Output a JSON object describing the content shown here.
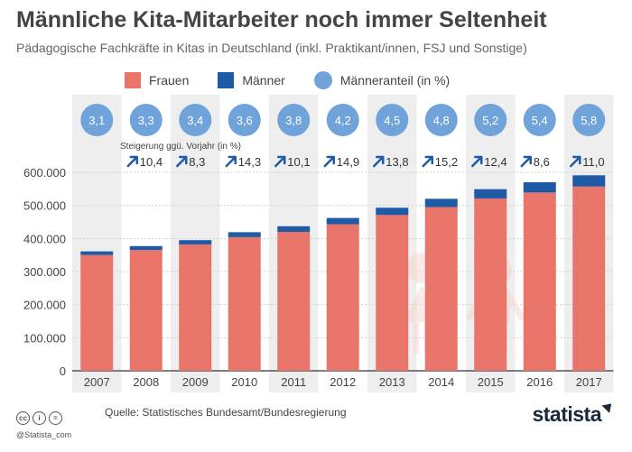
{
  "title": "Männliche Kita-Mitarbeiter noch immer Seltenheit",
  "subtitle": "Pädagogische Fachkräfte in Kitas in Deutschland (inkl. Praktikant/innen, FSJ und Sonstige)",
  "legend": [
    {
      "label": "Frauen",
      "color": "#e8746a",
      "shape": "square"
    },
    {
      "label": "Männer",
      "color": "#1f5aa6",
      "shape": "square"
    },
    {
      "label": "Männeranteil (in %)",
      "color": "#6fa3d9",
      "shape": "circle"
    }
  ],
  "growth_label": "Steigerung ggü. Vorjahr (in %)",
  "colors": {
    "frauen": "#e8746a",
    "maenner": "#1f5aa6",
    "anteil": "#6fa3d9",
    "band": "#eeeeee",
    "arrow": "#1f5aa6"
  },
  "chart_data": {
    "type": "bar",
    "stacked": true,
    "categories": [
      "2007",
      "2008",
      "2009",
      "2010",
      "2011",
      "2012",
      "2013",
      "2014",
      "2015",
      "2016",
      "2017"
    ],
    "series": [
      {
        "name": "Frauen",
        "values": [
          350000,
          365000,
          382000,
          404000,
          420000,
          443000,
          471000,
          495000,
          521000,
          539000,
          557000
        ]
      },
      {
        "name": "Männer",
        "values": [
          11000,
          12000,
          13000,
          15000,
          17000,
          19000,
          22000,
          25000,
          28000,
          31000,
          34000
        ]
      }
    ],
    "maenneranteil": [
      "3,1",
      "3,3",
      "3,4",
      "3,6",
      "3,8",
      "4,2",
      "4,5",
      "4,8",
      "5,2",
      "5,4",
      "5,8"
    ],
    "growth": [
      "10,4",
      "8,3",
      "14,3",
      "10,1",
      "14,9",
      "13,8",
      "15,2",
      "12,4",
      "8,6",
      "11,0"
    ],
    "yticks": [
      0,
      100000,
      200000,
      300000,
      400000,
      500000,
      600000
    ],
    "ytick_labels": [
      "0",
      "100.000",
      "200.000",
      "300.000",
      "400.000",
      "500.000",
      "600.000"
    ],
    "ylim": [
      0,
      600000
    ]
  },
  "footer": {
    "handle": "@Statista_com",
    "source": "Quelle: Statistisches Bundesamt/Bundesregierung",
    "brand": "statista",
    "cc_icons": [
      "cc",
      "i",
      "="
    ]
  }
}
